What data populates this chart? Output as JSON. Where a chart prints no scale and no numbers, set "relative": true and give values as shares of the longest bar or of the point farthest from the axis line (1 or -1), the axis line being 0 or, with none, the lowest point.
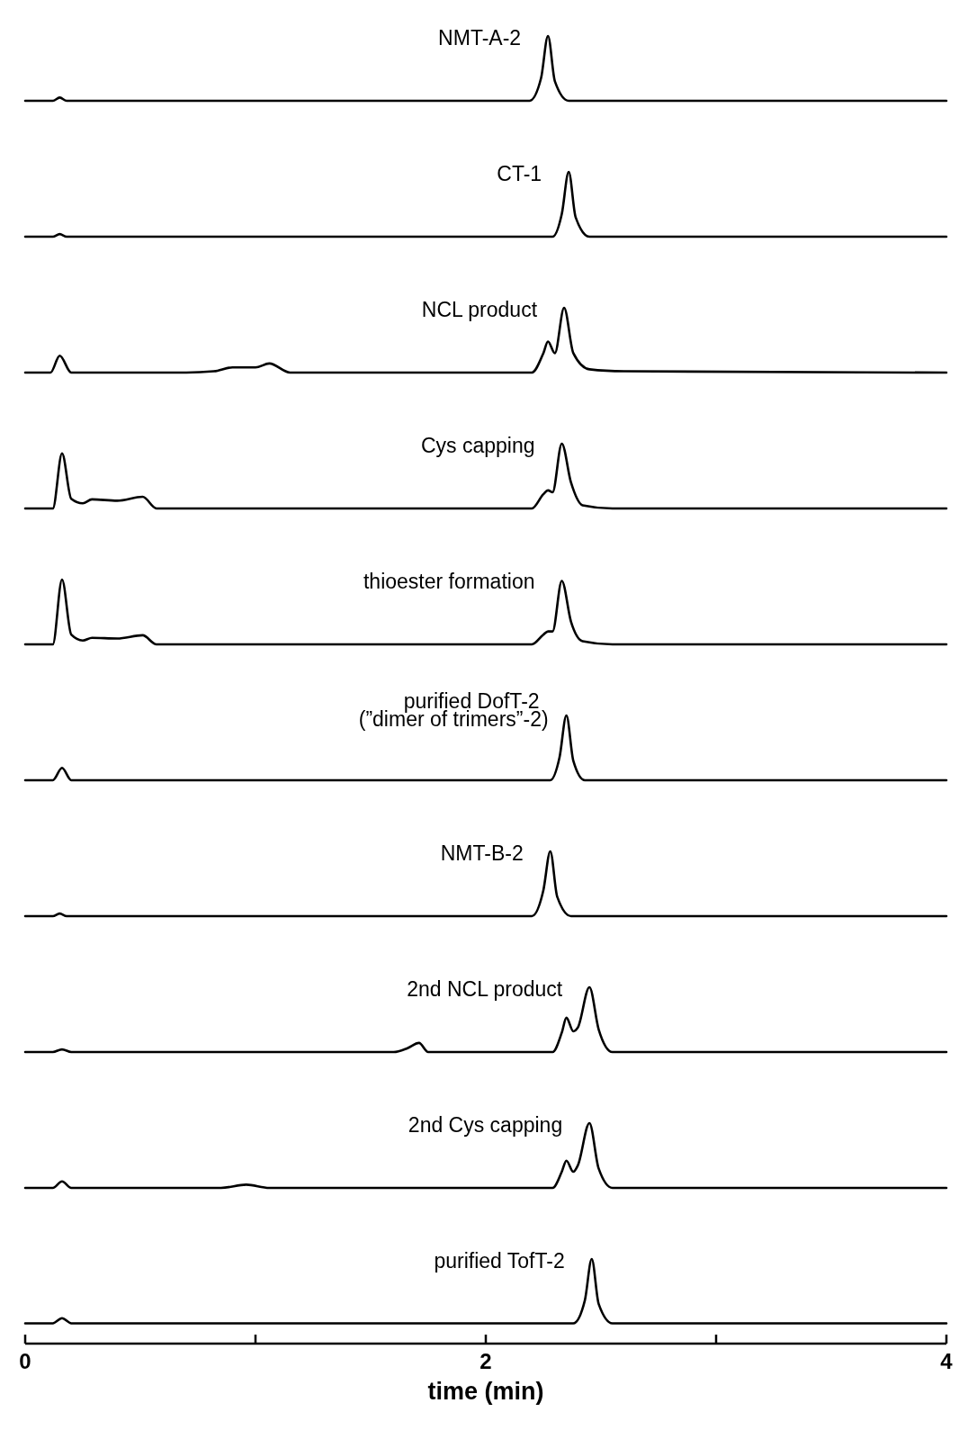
{
  "chart_data": [
    {
      "type": "line",
      "relative": true,
      "xlim": [
        0,
        4
      ],
      "tick_labels": false,
      "series": [
        {
          "name": "NMT-A-2",
          "color": "#000000",
          "x": [
            0,
            0.12,
            0.15,
            0.18,
            2.19,
            2.24,
            2.27,
            2.3,
            2.36,
            4
          ],
          "values": [
            0,
            0,
            0.05,
            0,
            0,
            0.35,
            1,
            0.3,
            0,
            0
          ]
        }
      ]
    },
    {
      "type": "line",
      "relative": true,
      "xlim": [
        0,
        4
      ],
      "tick_labels": false,
      "series": [
        {
          "name": "CT-1",
          "color": "#000000",
          "x": [
            0,
            0.12,
            0.15,
            0.18,
            2.29,
            2.33,
            2.36,
            2.39,
            2.45,
            4
          ],
          "values": [
            0,
            0,
            0.04,
            0,
            0,
            0.35,
            1,
            0.3,
            0,
            0
          ]
        }
      ]
    },
    {
      "type": "line",
      "relative": true,
      "xlim": [
        0,
        4
      ],
      "tick_labels": false,
      "series": [
        {
          "name": "NCL product",
          "color": "#000000",
          "x": [
            0,
            0.11,
            0.15,
            0.2,
            0.7,
            0.82,
            0.9,
            1.0,
            1.06,
            1.15,
            2.2,
            2.25,
            2.27,
            2.3,
            2.34,
            2.38,
            2.45,
            2.6,
            4
          ],
          "values": [
            0,
            0,
            0.26,
            0,
            0,
            0.02,
            0.08,
            0.08,
            0.14,
            0,
            0,
            0.3,
            0.48,
            0.3,
            1,
            0.3,
            0.05,
            0.02,
            0
          ]
        }
      ]
    },
    {
      "type": "line",
      "relative": true,
      "xlim": [
        0,
        4
      ],
      "tick_labels": false,
      "series": [
        {
          "name": "Cys capping",
          "color": "#000000",
          "x": [
            0,
            0.12,
            0.16,
            0.2,
            0.25,
            0.29,
            0.4,
            0.51,
            0.57,
            2.2,
            2.25,
            2.27,
            2.29,
            2.33,
            2.37,
            2.42,
            2.55,
            4
          ],
          "values": [
            0,
            0,
            0.85,
            0.15,
            0.08,
            0.14,
            0.12,
            0.18,
            0,
            0,
            0.22,
            0.28,
            0.25,
            1,
            0.4,
            0.05,
            0,
            0
          ]
        }
      ]
    },
    {
      "type": "line",
      "relative": true,
      "xlim": [
        0,
        4
      ],
      "tick_labels": false,
      "series": [
        {
          "name": "thioester formation",
          "color": "#000000",
          "x": [
            0,
            0.12,
            0.16,
            0.2,
            0.25,
            0.29,
            0.4,
            0.51,
            0.57,
            2.2,
            2.25,
            2.27,
            2.29,
            2.33,
            2.37,
            2.42,
            2.55,
            4
          ],
          "values": [
            0,
            0,
            1,
            0.15,
            0.06,
            0.1,
            0.09,
            0.14,
            0,
            0,
            0.15,
            0.2,
            0.2,
            0.98,
            0.35,
            0.05,
            0,
            0
          ]
        }
      ]
    },
    {
      "type": "line",
      "relative": true,
      "xlim": [
        0,
        4
      ],
      "tick_labels": false,
      "series": [
        {
          "name": "purified DofT-2 (”dimer of trimers”-2)",
          "color": "#000000",
          "x": [
            0,
            0.12,
            0.16,
            0.2,
            2.28,
            2.32,
            2.35,
            2.38,
            2.43,
            4
          ],
          "values": [
            0,
            0,
            0.19,
            0,
            0,
            0.35,
            1,
            0.3,
            0,
            0
          ]
        }
      ]
    },
    {
      "type": "line",
      "relative": true,
      "xlim": [
        0,
        4
      ],
      "tick_labels": false,
      "series": [
        {
          "name": "NMT-B-2",
          "color": "#000000",
          "x": [
            0,
            0.12,
            0.15,
            0.18,
            2.2,
            2.25,
            2.28,
            2.31,
            2.37,
            4
          ],
          "values": [
            0,
            0,
            0.04,
            0,
            0,
            0.4,
            1,
            0.3,
            0,
            0
          ]
        }
      ]
    },
    {
      "type": "line",
      "relative": true,
      "xlim": [
        0,
        4
      ],
      "tick_labels": false,
      "series": [
        {
          "name": "2nd NCL product",
          "color": "#000000",
          "x": [
            0,
            0.12,
            0.16,
            0.2,
            1.6,
            1.66,
            1.71,
            1.75,
            2.29,
            2.33,
            2.35,
            2.38,
            2.4,
            2.45,
            2.49,
            2.55,
            4
          ],
          "values": [
            0,
            0,
            0.04,
            0,
            0,
            0.06,
            0.14,
            0,
            0,
            0.3,
            0.53,
            0.32,
            0.38,
            1,
            0.35,
            0,
            0
          ]
        }
      ]
    },
    {
      "type": "line",
      "relative": true,
      "xlim": [
        0,
        4
      ],
      "tick_labels": false,
      "series": [
        {
          "name": "2nd Cys capping",
          "color": "#000000",
          "x": [
            0,
            0.12,
            0.16,
            0.2,
            0.85,
            0.96,
            1.06,
            2.29,
            2.33,
            2.35,
            2.38,
            2.4,
            2.45,
            2.49,
            2.55,
            4
          ],
          "values": [
            0,
            0,
            0.1,
            0,
            0,
            0.05,
            0,
            0,
            0.25,
            0.42,
            0.25,
            0.35,
            1,
            0.3,
            0,
            0
          ]
        }
      ]
    },
    {
      "type": "line",
      "relative": true,
      "xlim": [
        0,
        4
      ],
      "tick_labels": "x",
      "xticks": [
        0,
        {
          "value": 1,
          "label": null
        },
        2,
        {
          "value": 3,
          "label": null
        },
        4
      ],
      "xlabel": "time (min)",
      "series": [
        {
          "name": "purified TofT-2",
          "color": "#000000",
          "x": [
            0,
            0.12,
            0.16,
            0.2,
            2.38,
            2.43,
            2.46,
            2.49,
            2.55,
            4
          ],
          "values": [
            0.24,
            0.24,
            0.3,
            0.24,
            0.24,
            0.51,
            1,
            0.47,
            0.24,
            0.24
          ]
        }
      ]
    }
  ]
}
